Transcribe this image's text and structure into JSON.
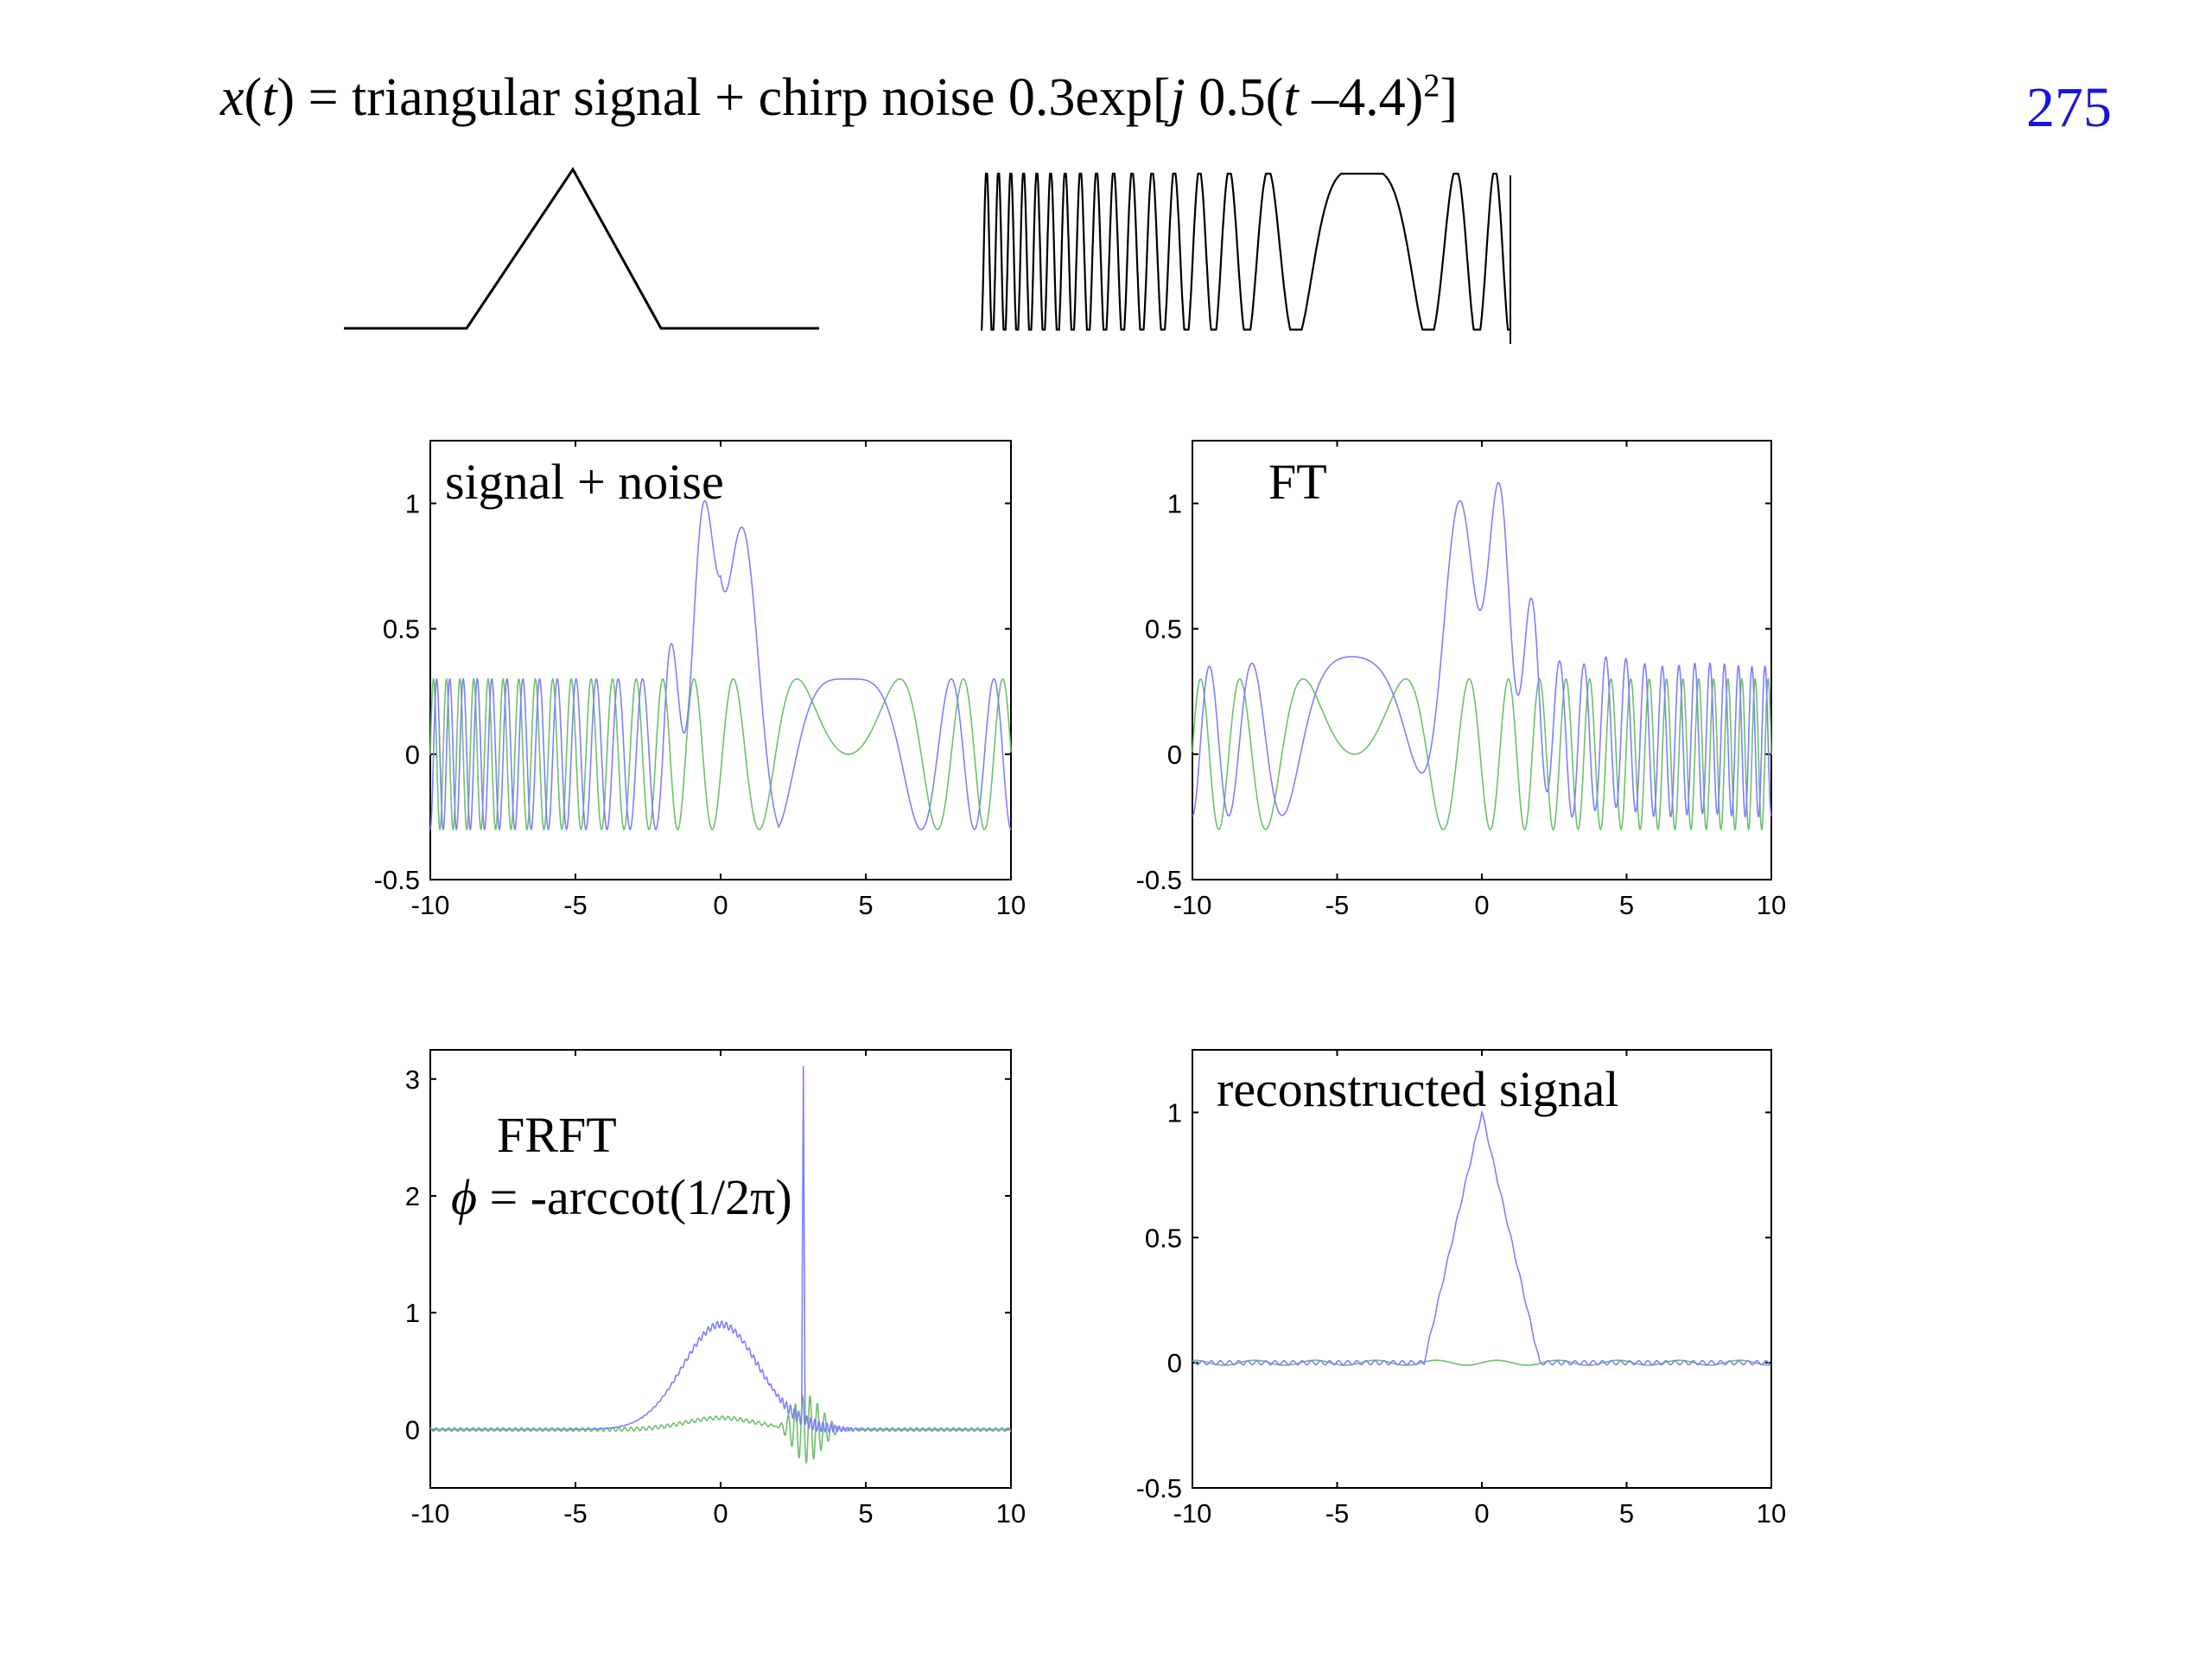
{
  "header": {
    "title_parts": [
      "x",
      "(",
      "t",
      ") = triangular signal +  chirp noise 0.3exp[",
      "j",
      " 0.5(",
      "t",
      " –4.4)",
      "2",
      "]"
    ],
    "page_number": "275"
  },
  "illustrations": {
    "triangle": {
      "name": "triangular-signal"
    },
    "chirp": {
      "name": "chirp-noise",
      "amplitude": 0.3,
      "rate": 0.5,
      "center": 4.4,
      "t_range": [
        -10,
        10
      ]
    }
  },
  "colors": {
    "real": "#7f7fff",
    "imag": "#6fbf6f",
    "axis": "#000000",
    "page_number": "#1515e0"
  },
  "chart_data": [
    {
      "type": "line",
      "label": "signal + noise",
      "label_lines": [
        "signal + noise"
      ],
      "xlim": [
        -10,
        10
      ],
      "ylim": [
        -0.5,
        1.25
      ],
      "xticks": [
        -10,
        -5,
        0,
        5,
        10
      ],
      "xtick_labels": [
        "-10",
        "-5",
        "0",
        "5",
        "10"
      ],
      "yticks": [
        -0.5,
        0,
        0.5,
        1
      ],
      "ytick_labels": [
        "-0.5",
        "0",
        "0.5",
        "1"
      ],
      "grid": false,
      "series": [
        {
          "component": "real",
          "expr": "triangle(t) + 0.3*cos(0.5*(t-4.4)^2)"
        },
        {
          "component": "imag",
          "expr": "0.3*sin(0.5*(t-4.4)^2)"
        }
      ]
    },
    {
      "type": "line",
      "label": "FT",
      "label_lines": [
        "FT"
      ],
      "xlim": [
        -10,
        10
      ],
      "ylim": [
        -0.5,
        1.25
      ],
      "xticks": [
        -10,
        -5,
        0,
        5,
        10
      ],
      "xtick_labels": [
        "-10",
        "-5",
        "0",
        "5",
        "10"
      ],
      "yticks": [
        -0.5,
        0,
        0.5,
        1
      ],
      "ytick_labels": [
        "-0.5",
        "0",
        "0.5",
        "1"
      ],
      "grid": false,
      "series": [
        {
          "component": "real",
          "expr": "sinc^2 peak 1.1 at 0 + 0.3*cos(0.5*(t+4.4)^2)"
        },
        {
          "component": "imag",
          "expr": "0.3*sin(0.5*(t+4.4)^2)"
        }
      ]
    },
    {
      "type": "line",
      "label": "FRFT",
      "label_lines": [
        "FRFT",
        "ϕ",
        " = -arccot(1/2π)"
      ],
      "xlim": [
        -10,
        10
      ],
      "ylim": [
        -0.5,
        3.25
      ],
      "xticks": [
        -10,
        -5,
        0,
        5,
        10
      ],
      "xtick_labels": [
        "-10",
        "-5",
        "0",
        "5",
        "10"
      ],
      "yticks": [
        0,
        1,
        2,
        3
      ],
      "ytick_labels": [
        "0",
        "1",
        "2",
        "3"
      ],
      "grid": false,
      "series": [
        {
          "component": "real",
          "expr": "broad bump 0.9 at 0 + spike 3.0 at 2.85"
        },
        {
          "component": "imag",
          "expr": "small bump 0.1 at 0 + oscillation near 3"
        }
      ]
    },
    {
      "type": "line",
      "label": "reconstructed signal",
      "label_lines": [
        "reconstructed signal"
      ],
      "xlim": [
        -10,
        10
      ],
      "ylim": [
        -0.5,
        1.25
      ],
      "xticks": [
        -10,
        -5,
        0,
        5,
        10
      ],
      "xtick_labels": [
        "-10",
        "-5",
        "0",
        "5",
        "10"
      ],
      "yticks": [
        -0.5,
        0,
        0.5,
        1
      ],
      "ytick_labels": [
        "-0.5",
        "0",
        "0.5",
        "1"
      ],
      "grid": false,
      "series": [
        {
          "component": "real",
          "expr": "triangle(t), peak 1 at 0, support [-2, 2]"
        },
        {
          "component": "imag",
          "expr": "≈ 0"
        }
      ]
    }
  ]
}
